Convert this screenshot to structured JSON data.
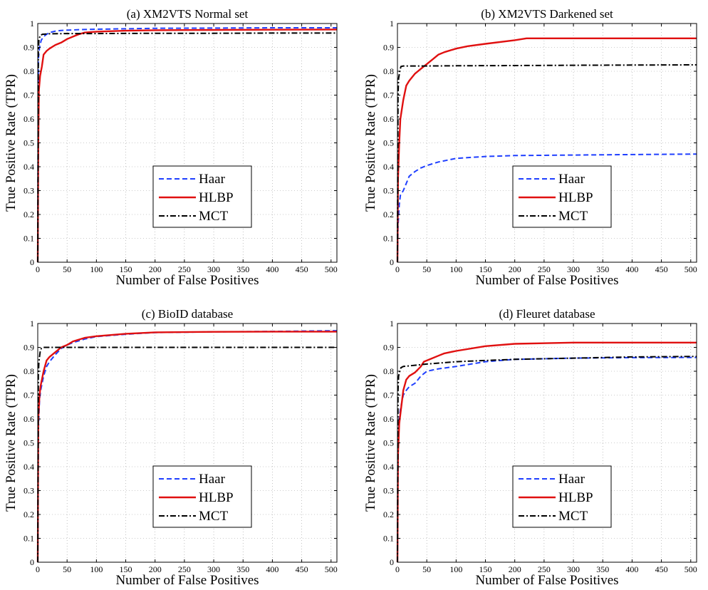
{
  "chart_data": [
    {
      "type": "line",
      "title": "(a) XM2VTS Normal set",
      "xlabel": "Number of False Positives",
      "ylabel": "True Positive Rate (TPR)",
      "xlim": [
        0,
        510
      ],
      "ylim": [
        0,
        1
      ],
      "xticks": [
        0,
        50,
        100,
        150,
        200,
        250,
        300,
        350,
        400,
        450,
        500
      ],
      "yticks": [
        0,
        0.1,
        0.2,
        0.3,
        0.4,
        0.5,
        0.6,
        0.7,
        0.8,
        0.9,
        1
      ],
      "grid": true,
      "legend_position": "center-bottom",
      "series": [
        {
          "name": "Haar",
          "color": "#1f3fff",
          "style": "dashed",
          "x": [
            0,
            1,
            3,
            6,
            10,
            15,
            20,
            30,
            40,
            60,
            80,
            100,
            150,
            200,
            300,
            400,
            510
          ],
          "y": [
            0,
            0.85,
            0.9,
            0.93,
            0.945,
            0.955,
            0.962,
            0.968,
            0.971,
            0.973,
            0.975,
            0.976,
            0.978,
            0.98,
            0.981,
            0.982,
            0.982
          ]
        },
        {
          "name": "HLBP",
          "color": "#e01010",
          "style": "solid",
          "x": [
            0,
            1,
            2,
            4,
            7,
            10,
            15,
            20,
            30,
            40,
            50,
            60,
            70,
            80,
            100,
            150,
            200,
            300,
            400,
            510
          ],
          "y": [
            0,
            0.5,
            0.72,
            0.78,
            0.82,
            0.87,
            0.885,
            0.895,
            0.91,
            0.92,
            0.935,
            0.945,
            0.955,
            0.962,
            0.966,
            0.97,
            0.972,
            0.973,
            0.974,
            0.975
          ]
        },
        {
          "name": "MCT",
          "color": "#000000",
          "style": "dashdot",
          "x": [
            0,
            1,
            2,
            4,
            8,
            20,
            50,
            100,
            200,
            300,
            400,
            510
          ],
          "y": [
            0,
            0.88,
            0.93,
            0.95,
            0.955,
            0.957,
            0.958,
            0.958,
            0.959,
            0.959,
            0.96,
            0.96
          ]
        }
      ]
    },
    {
      "type": "line",
      "title": "(b) XM2VTS Darkened set",
      "xlabel": "Number of False Positives",
      "ylabel": "True Positive Rate (TPR)",
      "xlim": [
        0,
        510
      ],
      "ylim": [
        0,
        1
      ],
      "xticks": [
        0,
        50,
        100,
        150,
        200,
        250,
        300,
        350,
        400,
        450,
        500
      ],
      "yticks": [
        0,
        0.1,
        0.2,
        0.3,
        0.4,
        0.5,
        0.6,
        0.7,
        0.8,
        0.9,
        1
      ],
      "grid": true,
      "legend_position": "center-bottom",
      "series": [
        {
          "name": "Haar",
          "color": "#1f3fff",
          "style": "dashed",
          "x": [
            0,
            1,
            3,
            5,
            10,
            15,
            20,
            30,
            40,
            50,
            70,
            100,
            150,
            200,
            300,
            400,
            510
          ],
          "y": [
            0,
            0.15,
            0.24,
            0.28,
            0.3,
            0.33,
            0.36,
            0.38,
            0.395,
            0.405,
            0.42,
            0.435,
            0.443,
            0.447,
            0.449,
            0.451,
            0.453
          ]
        },
        {
          "name": "HLBP",
          "color": "#e01010",
          "style": "solid",
          "x": [
            0,
            1,
            3,
            5,
            10,
            15,
            20,
            30,
            40,
            50,
            60,
            70,
            80,
            100,
            120,
            150,
            200,
            220,
            300,
            400,
            510
          ],
          "y": [
            0,
            0.35,
            0.5,
            0.6,
            0.68,
            0.74,
            0.76,
            0.79,
            0.81,
            0.83,
            0.85,
            0.87,
            0.88,
            0.895,
            0.905,
            0.915,
            0.93,
            0.938,
            0.938,
            0.938,
            0.938
          ]
        },
        {
          "name": "MCT",
          "color": "#000000",
          "style": "dashdot",
          "x": [
            0,
            1,
            2,
            4,
            6,
            10,
            50,
            100,
            200,
            300,
            400,
            510
          ],
          "y": [
            0,
            0.7,
            0.77,
            0.8,
            0.82,
            0.822,
            0.822,
            0.823,
            0.824,
            0.825,
            0.826,
            0.827
          ]
        }
      ]
    },
    {
      "type": "line",
      "title": "(c) BioID database",
      "xlabel": "Number of False Positives",
      "ylabel": "True Positive Rate (TPR)",
      "xlim": [
        0,
        510
      ],
      "ylim": [
        0,
        1
      ],
      "xticks": [
        0,
        50,
        100,
        150,
        200,
        250,
        300,
        350,
        400,
        450,
        500
      ],
      "yticks": [
        0,
        0.1,
        0.2,
        0.3,
        0.4,
        0.5,
        0.6,
        0.7,
        0.8,
        0.9,
        1
      ],
      "grid": true,
      "legend_position": "center-bottom",
      "series": [
        {
          "name": "Haar",
          "color": "#1f3fff",
          "style": "dashed",
          "x": [
            0,
            1,
            3,
            5,
            10,
            15,
            20,
            30,
            40,
            50,
            60,
            80,
            100,
            150,
            200,
            300,
            400,
            510
          ],
          "y": [
            0,
            0.55,
            0.68,
            0.72,
            0.78,
            0.82,
            0.84,
            0.87,
            0.895,
            0.91,
            0.92,
            0.935,
            0.945,
            0.955,
            0.962,
            0.965,
            0.967,
            0.97
          ]
        },
        {
          "name": "HLBP",
          "color": "#e01010",
          "style": "solid",
          "x": [
            0,
            1,
            3,
            5,
            10,
            15,
            20,
            30,
            40,
            50,
            60,
            80,
            100,
            150,
            200,
            300,
            400,
            510
          ],
          "y": [
            0,
            0.6,
            0.7,
            0.74,
            0.8,
            0.845,
            0.86,
            0.88,
            0.9,
            0.91,
            0.925,
            0.94,
            0.947,
            0.957,
            0.963,
            0.965,
            0.966,
            0.966
          ]
        },
        {
          "name": "MCT",
          "color": "#000000",
          "style": "dashdot",
          "x": [
            0,
            1,
            2,
            4,
            6,
            10,
            50,
            100,
            200,
            300,
            400,
            510
          ],
          "y": [
            0,
            0.78,
            0.84,
            0.88,
            0.895,
            0.9,
            0.9,
            0.9,
            0.9,
            0.9,
            0.9,
            0.9
          ]
        }
      ]
    },
    {
      "type": "line",
      "title": "(d) Fleuret database",
      "xlabel": "Number of False Positives",
      "ylabel": "True Positive Rate (TPR)",
      "xlim": [
        0,
        510
      ],
      "ylim": [
        0,
        1
      ],
      "xticks": [
        0,
        50,
        100,
        150,
        200,
        250,
        300,
        350,
        400,
        450,
        500
      ],
      "yticks": [
        0,
        0.1,
        0.2,
        0.3,
        0.4,
        0.5,
        0.6,
        0.7,
        0.8,
        0.9,
        1
      ],
      "grid": true,
      "legend_position": "center-bottom",
      "series": [
        {
          "name": "Haar",
          "color": "#1f3fff",
          "style": "dashed",
          "x": [
            0,
            1,
            3,
            5,
            10,
            15,
            20,
            30,
            40,
            50,
            70,
            100,
            150,
            200,
            300,
            400,
            510
          ],
          "y": [
            0,
            0.5,
            0.6,
            0.64,
            0.7,
            0.72,
            0.735,
            0.75,
            0.78,
            0.8,
            0.81,
            0.82,
            0.84,
            0.85,
            0.855,
            0.857,
            0.858
          ]
        },
        {
          "name": "HLBP",
          "color": "#e01010",
          "style": "solid",
          "x": [
            0,
            1,
            3,
            5,
            10,
            15,
            20,
            30,
            40,
            45,
            55,
            70,
            80,
            100,
            150,
            200,
            300,
            400,
            510
          ],
          "y": [
            0,
            0.45,
            0.58,
            0.62,
            0.72,
            0.765,
            0.78,
            0.795,
            0.82,
            0.84,
            0.85,
            0.865,
            0.875,
            0.885,
            0.905,
            0.915,
            0.92,
            0.92,
            0.92
          ]
        },
        {
          "name": "MCT",
          "color": "#000000",
          "style": "dashdot",
          "x": [
            0,
            1,
            2,
            4,
            6,
            10,
            50,
            100,
            150,
            200,
            300,
            400,
            510
          ],
          "y": [
            0,
            0.72,
            0.78,
            0.8,
            0.815,
            0.82,
            0.83,
            0.84,
            0.845,
            0.85,
            0.855,
            0.86,
            0.862
          ]
        }
      ]
    }
  ]
}
